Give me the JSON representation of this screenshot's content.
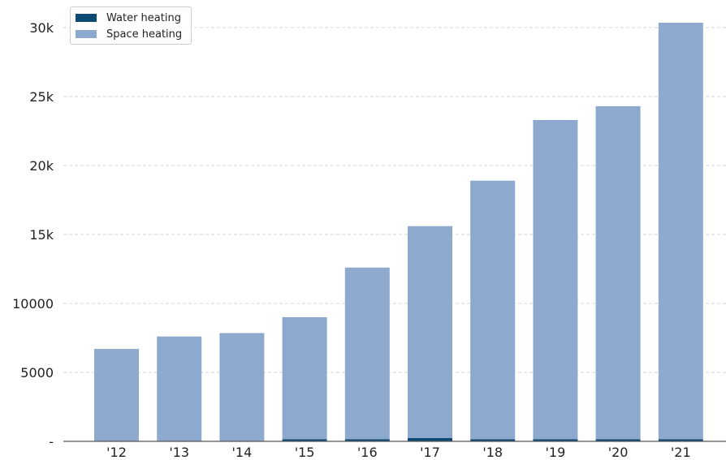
{
  "chart_data": {
    "type": "bar",
    "stacked": true,
    "categories": [
      "'12",
      "'13",
      "'14",
      "'15",
      "'16",
      "'17",
      "'18",
      "'19",
      "'20",
      "'21"
    ],
    "series": [
      {
        "name": "Water heating",
        "color": "#0b4a75",
        "values": [
          0,
          0,
          0,
          150,
          150,
          250,
          150,
          150,
          150,
          150
        ]
      },
      {
        "name": "Space heating",
        "color": "#8da9cd",
        "values": [
          6700,
          7600,
          7850,
          8850,
          12450,
          15350,
          18750,
          23150,
          24150,
          30200
        ]
      }
    ],
    "ylim": [
      0,
      32000
    ],
    "yticks": [
      0,
      5000,
      10000,
      15000,
      20000,
      25000,
      30000
    ],
    "yticklabels": [
      "-",
      "5000",
      "10000",
      "15k",
      "20k",
      "25k",
      "30k"
    ],
    "grid": true,
    "legend_position": "top-left"
  }
}
